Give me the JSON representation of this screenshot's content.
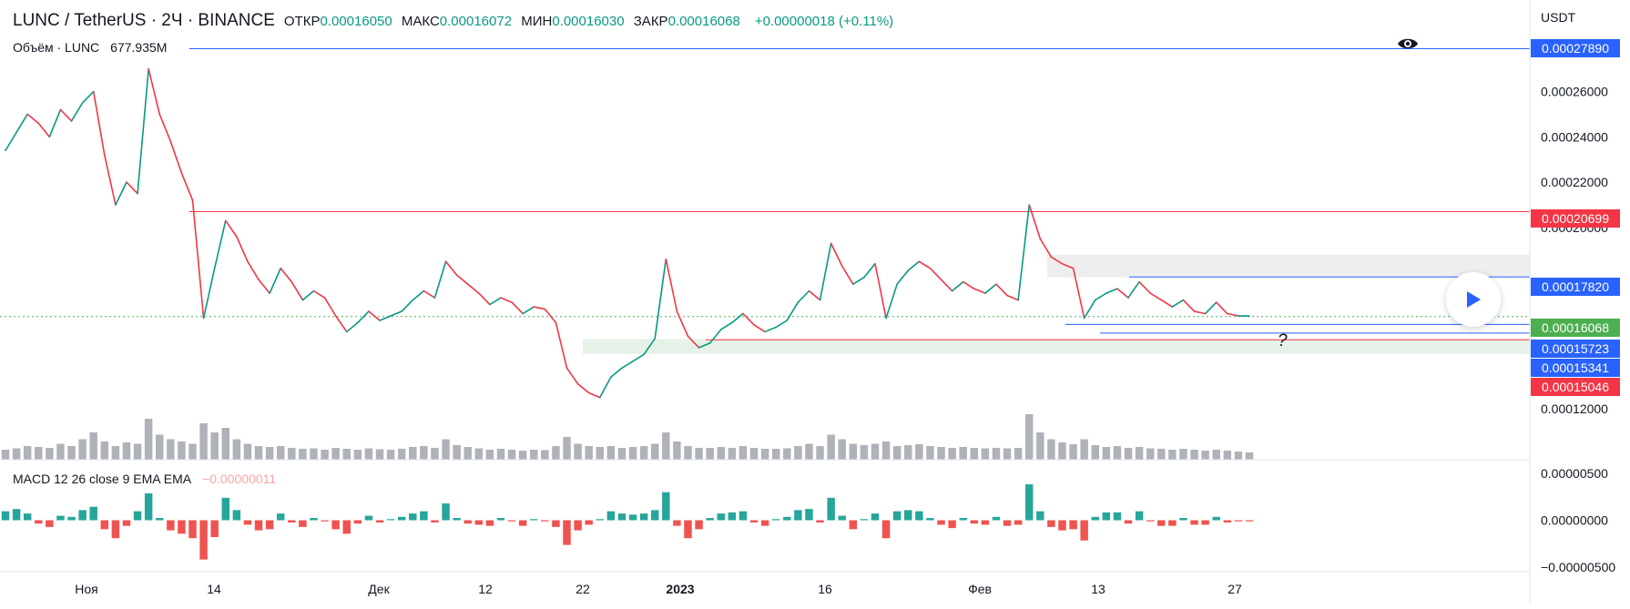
{
  "legend": {
    "symbol": "LUNC / TetherUS · 2Ч · BINANCE",
    "open_label": "ОТКР",
    "open": "0.00016050",
    "high_label": "МАКС",
    "high": "0.00016072",
    "low_label": "МИН",
    "low": "0.00016030",
    "close_label": "ЗАКР",
    "close": "0.00016068",
    "change": "+0.00000018 (+0.11%)"
  },
  "volume_legend": {
    "label": "Объём · LUNC",
    "value": "677.935M"
  },
  "macd_legend": {
    "label": "MACD 12 26 close 9 EMA EMA",
    "value": "−0.00000011"
  },
  "price_axis": {
    "currency": "USDT",
    "ticks": [
      "0.00026000",
      "0.00024000",
      "0.00022000",
      "0.00020000",
      "0.00012000"
    ]
  },
  "macd_axis": {
    "ticks": [
      "0.00000500",
      "0.00000000",
      "−0.00000500"
    ]
  },
  "time_axis": {
    "labels": [
      {
        "label": "Ноя",
        "bold": false
      },
      {
        "label": "14",
        "bold": false
      },
      {
        "label": "Дек",
        "bold": false
      },
      {
        "label": "12",
        "bold": false
      },
      {
        "label": "22",
        "bold": false
      },
      {
        "label": "2023",
        "bold": true
      },
      {
        "label": "16",
        "bold": false
      },
      {
        "label": "Фев",
        "bold": false
      },
      {
        "label": "13",
        "bold": false
      },
      {
        "label": "27",
        "bold": false
      }
    ]
  },
  "price_tags": [
    {
      "value": "0.00027890",
      "color": "#2962ff"
    },
    {
      "value": "0.00020699",
      "color": "#f23645"
    },
    {
      "value": "0.00017820",
      "color": "#2962ff"
    },
    {
      "value": "0.00016068",
      "color": "#4caf50"
    },
    {
      "value": "0.00015723",
      "color": "#2962ff"
    },
    {
      "value": "0.00015341",
      "color": "#2962ff"
    },
    {
      "value": "0.00015046",
      "color": "#f23645"
    }
  ],
  "annotations": {
    "question_mark": "?"
  },
  "colors": {
    "up": "#089981",
    "down": "#f23645",
    "macd_up": "#26a69a",
    "macd_down": "#ef5350",
    "volume": "#9598a1",
    "support_zone": "#e6f2e7",
    "resistance_zone": "#eeeeee"
  },
  "chart_data": {
    "type": "line",
    "title": "LUNC / TetherUS · 2Ч · BINANCE",
    "series": [
      {
        "values": [
          0.000234,
          0.000242,
          0.00025,
          0.000246,
          0.00024,
          0.000252,
          0.000247,
          0.000255,
          0.00026,
          0.000232,
          0.00021,
          0.00022,
          0.000215,
          0.00027,
          0.00025,
          0.000238,
          0.000224,
          0.000212,
          0.00016,
          0.000182,
          0.000203,
          0.000196,
          0.000185,
          0.000177,
          0.000171,
          0.000182,
          0.000176,
          0.000168,
          0.000172,
          0.000169,
          0.000161,
          0.000154,
          0.000158,
          0.000163,
          0.000159,
          0.000161,
          0.000163,
          0.000168,
          0.000172,
          0.000169,
          0.000185,
          0.000179,
          0.000175,
          0.000171,
          0.000166,
          0.000169,
          0.000167,
          0.000162,
          0.000165,
          0.000164,
          0.000158,
          0.000138,
          0.000131,
          0.000127,
          0.000125,
          0.000134,
          0.000138,
          0.000141,
          0.000144,
          0.000151,
          0.000186,
          0.000163,
          0.000152,
          0.000147,
          0.000149,
          0.000155,
          0.000158,
          0.000162,
          0.000157,
          0.000154,
          0.000156,
          0.000159,
          0.000167,
          0.000172,
          0.000168,
          0.000193,
          0.000183,
          0.000175,
          0.000178,
          0.000184,
          0.00016,
          0.000175,
          0.000181,
          0.000185,
          0.000182,
          0.000177,
          0.000172,
          0.000176,
          0.000173,
          0.000171,
          0.000175,
          0.00017,
          0.000168,
          0.00021,
          0.000195,
          0.000187,
          0.000184,
          0.000182,
          0.00016,
          0.000168,
          0.000171,
          0.000173,
          0.000169,
          0.000176,
          0.000171,
          0.000168,
          0.000165,
          0.000168,
          0.000163,
          0.000162,
          0.000167,
          0.000162,
          0.000161,
          0.000161
        ]
      }
    ],
    "volume": [
      0.22,
      0.25,
      0.3,
      0.28,
      0.26,
      0.35,
      0.3,
      0.45,
      0.6,
      0.4,
      0.3,
      0.38,
      0.35,
      0.9,
      0.55,
      0.45,
      0.4,
      0.35,
      0.8,
      0.6,
      0.7,
      0.45,
      0.35,
      0.3,
      0.28,
      0.3,
      0.26,
      0.24,
      0.25,
      0.22,
      0.26,
      0.24,
      0.22,
      0.25,
      0.23,
      0.22,
      0.24,
      0.28,
      0.3,
      0.26,
      0.45,
      0.32,
      0.28,
      0.25,
      0.22,
      0.24,
      0.22,
      0.2,
      0.22,
      0.21,
      0.3,
      0.5,
      0.35,
      0.3,
      0.28,
      0.3,
      0.26,
      0.28,
      0.3,
      0.35,
      0.6,
      0.4,
      0.3,
      0.26,
      0.26,
      0.28,
      0.26,
      0.3,
      0.26,
      0.24,
      0.24,
      0.25,
      0.3,
      0.35,
      0.3,
      0.55,
      0.45,
      0.35,
      0.32,
      0.35,
      0.4,
      0.3,
      0.32,
      0.34,
      0.3,
      0.28,
      0.26,
      0.28,
      0.26,
      0.25,
      0.26,
      0.25,
      0.26,
      1.0,
      0.6,
      0.45,
      0.38,
      0.34,
      0.45,
      0.32,
      0.28,
      0.3,
      0.26,
      0.28,
      0.25,
      0.24,
      0.22,
      0.24,
      0.22,
      0.2,
      0.22,
      0.2,
      0.18,
      0.16
    ],
    "macd_hist": [
      0.8,
      1.0,
      0.6,
      -0.3,
      -0.6,
      0.4,
      0.3,
      0.9,
      1.2,
      -0.8,
      -1.6,
      -0.5,
      0.8,
      2.4,
      0.2,
      -0.9,
      -1.2,
      -1.6,
      -3.5,
      -1.5,
      2.0,
      0.9,
      -0.4,
      -0.9,
      -0.8,
      0.6,
      -0.2,
      -0.6,
      0.2,
      -0.1,
      -0.8,
      -1.2,
      -0.3,
      0.4,
      -0.2,
      0.1,
      0.3,
      0.6,
      0.8,
      -0.2,
      1.5,
      0.2,
      -0.3,
      -0.4,
      -0.5,
      0.2,
      -0.1,
      -0.5,
      0.1,
      -0.1,
      -0.6,
      -2.2,
      -0.9,
      -0.4,
      0.1,
      0.8,
      0.6,
      0.5,
      0.6,
      0.9,
      2.5,
      -0.5,
      -1.6,
      -0.8,
      0.2,
      0.6,
      0.7,
      0.8,
      -0.2,
      -0.5,
      0.1,
      0.3,
      0.9,
      1.0,
      -0.2,
      2.0,
      0.4,
      -0.8,
      0.1,
      0.6,
      -1.6,
      0.8,
      0.9,
      0.8,
      0.2,
      -0.4,
      -0.7,
      0.2,
      -0.3,
      -0.4,
      0.3,
      -0.5,
      -0.4,
      3.2,
      0.8,
      -0.6,
      -0.9,
      -0.8,
      -1.8,
      0.3,
      0.7,
      0.7,
      -0.3,
      0.8,
      -0.1,
      -0.5,
      -0.5,
      0.2,
      -0.4,
      -0.4,
      0.3,
      -0.2,
      -0.1,
      -0.1
    ],
    "levels": [
      0.0002789,
      0.00020699,
      0.0001782,
      0.00016068,
      0.00015723,
      0.00015341,
      0.00015046
    ],
    "ylim": [
      0.0001116,
      0.0002795
    ],
    "macd_ylim": [
      -5.5e-06,
      5.5e-06
    ],
    "grid": false
  }
}
